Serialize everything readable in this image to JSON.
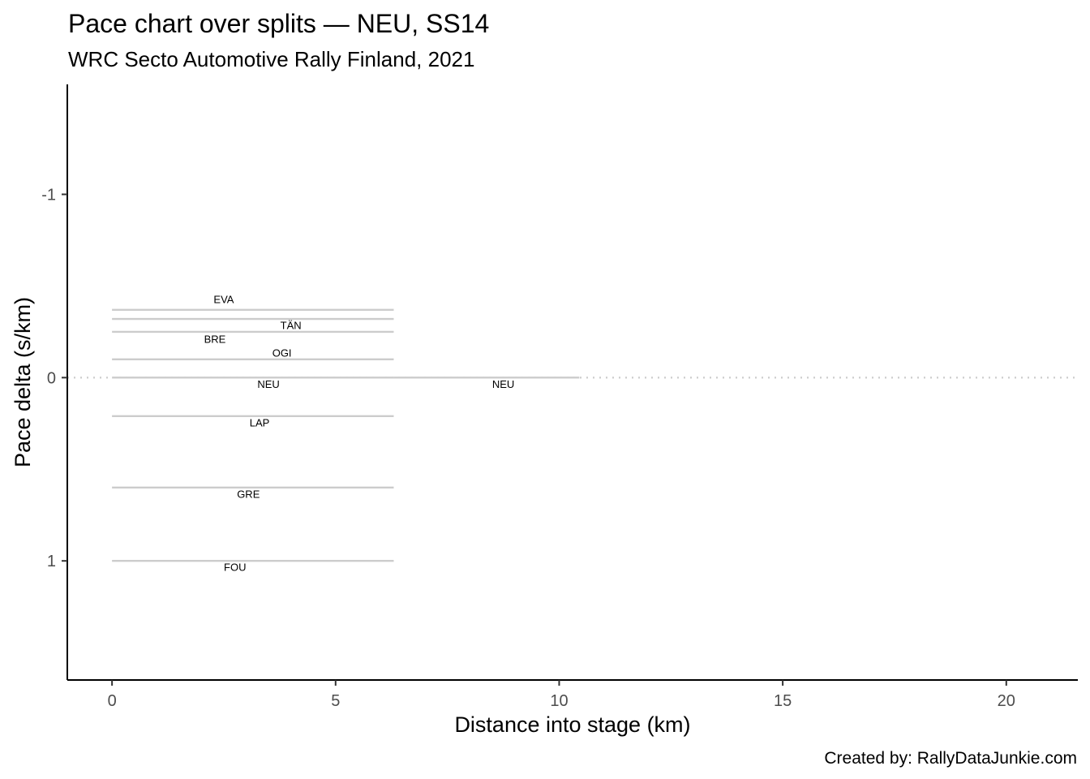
{
  "chart_data": {
    "type": "line",
    "title": "Pace chart over splits — NEU, SS14",
    "subtitle": "WRC Secto Automotive Rally Finland, 2021",
    "xlabel": "Distance into stage (km)",
    "ylabel": "Pace delta (s/km)",
    "caption": "Created by: RallyDataJunkie.com",
    "xlim": [
      -1,
      21.6
    ],
    "ylim": [
      1.65,
      -1.6
    ],
    "y_reversed": true,
    "x_ticks": [
      0,
      5,
      10,
      15,
      20
    ],
    "y_ticks": [
      -1,
      0,
      1
    ],
    "x_tick_labels": [
      "0",
      "5",
      "10",
      "15",
      "20"
    ],
    "y_tick_labels": [
      "-1",
      "0",
      "1"
    ],
    "grid": false,
    "reference_line": {
      "y": 0,
      "x_range": [
        -1,
        21.6
      ],
      "style": "dotted",
      "color": "#cccccc"
    },
    "line_color": "#cccccc",
    "series": [
      {
        "name": "EVA",
        "segments": [
          {
            "x": [
              0,
              6.3
            ],
            "y": -0.37,
            "label": "EVA"
          }
        ]
      },
      {
        "name": "TÄN",
        "segments": [
          {
            "x": [
              0,
              6.3
            ],
            "y": -0.32,
            "label": "TÄN"
          }
        ]
      },
      {
        "name": "BRE",
        "segments": [
          {
            "x": [
              0,
              6.3
            ],
            "y": -0.25,
            "label": "BRE"
          }
        ]
      },
      {
        "name": "OGI",
        "segments": [
          {
            "x": [
              0,
              6.3
            ],
            "y": -0.1,
            "label": "OGI"
          }
        ]
      },
      {
        "name": "NEU",
        "segments": [
          {
            "x": [
              0,
              6.3
            ],
            "y": 0.0,
            "label": "NEU"
          },
          {
            "x": [
              6.3,
              10.45
            ],
            "y": 0.0,
            "label": "NEU"
          }
        ]
      },
      {
        "name": "LAP",
        "segments": [
          {
            "x": [
              0,
              6.3
            ],
            "y": 0.21,
            "label": "LAP"
          }
        ]
      },
      {
        "name": "GRE",
        "segments": [
          {
            "x": [
              0,
              6.3
            ],
            "y": 0.6,
            "label": "GRE"
          }
        ]
      },
      {
        "name": "FOU",
        "segments": [
          {
            "x": [
              0,
              6.3
            ],
            "y": 1.0,
            "label": "FOU"
          }
        ]
      }
    ]
  }
}
